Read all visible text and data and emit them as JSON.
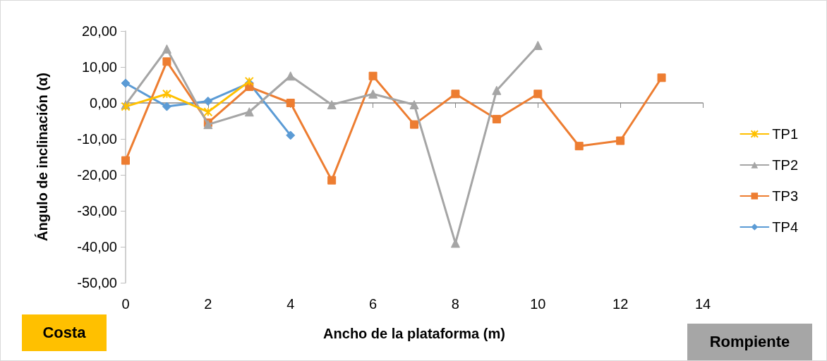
{
  "chart_data": {
    "type": "line",
    "xlabel": "Ancho de la plataforma (m)",
    "ylabel": "Ángulo de inclinación (α)",
    "annotations": [
      "Costa",
      "Rompiente"
    ],
    "xlim": [
      0,
      14
    ],
    "xticks": [
      0,
      2,
      4,
      6,
      8,
      10,
      12,
      14
    ],
    "ylim": [
      -50,
      20
    ],
    "yticks": [
      {
        "value": -50,
        "label": "-50,00"
      },
      {
        "value": -40,
        "label": "-40,00"
      },
      {
        "value": -30,
        "label": "-30,00"
      },
      {
        "value": -20,
        "label": "-20,00"
      },
      {
        "value": -10,
        "label": "-10,00"
      },
      {
        "value": 0,
        "label": "0,00"
      },
      {
        "value": 10,
        "label": "10,00"
      },
      {
        "value": 20,
        "label": "20,00"
      }
    ],
    "legend": "right",
    "series": [
      {
        "name": "TP1",
        "color": "#ffc000",
        "marker": "cross",
        "x": [
          0,
          1,
          2,
          3
        ],
        "values": [
          -1,
          2.5,
          -2.5,
          6
        ]
      },
      {
        "name": "TP2",
        "color": "#a5a5a5",
        "marker": "triangle",
        "x": [
          0,
          1,
          2,
          3,
          4,
          5,
          6,
          7,
          8,
          9,
          10
        ],
        "values": [
          -0.5,
          15,
          -6,
          -2.5,
          7.5,
          -0.5,
          2.5,
          -0.5,
          -39,
          3.5,
          16
        ]
      },
      {
        "name": "TP3",
        "color": "#ed7d31",
        "marker": "square",
        "x": [
          0,
          1,
          2,
          3,
          4,
          5,
          6,
          7,
          8,
          9,
          10,
          11,
          12,
          13
        ],
        "values": [
          -16,
          11.5,
          -5.5,
          4.5,
          0,
          -21.5,
          7.5,
          -6,
          2.5,
          -4.5,
          2.5,
          -12,
          -10.5,
          7
        ]
      },
      {
        "name": "TP4",
        "color": "#5b9bd5",
        "marker": "diamond",
        "x": [
          0,
          1,
          2,
          3,
          4
        ],
        "values": [
          5.5,
          -1,
          0.5,
          5.5,
          -9
        ]
      }
    ]
  }
}
